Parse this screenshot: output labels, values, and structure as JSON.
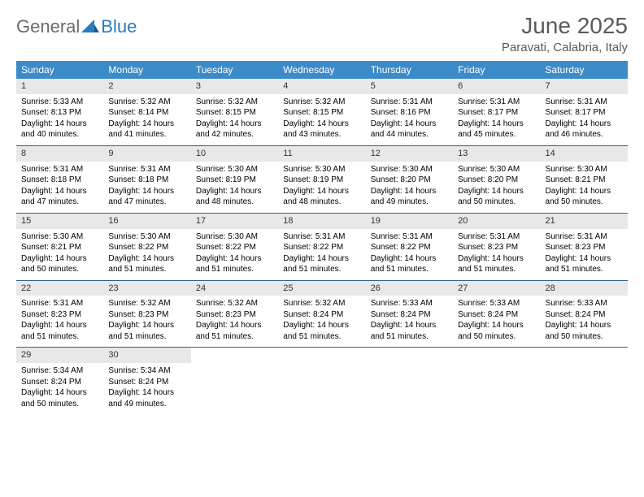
{
  "logo": {
    "text1": "General",
    "text2": "Blue"
  },
  "title": "June 2025",
  "location": "Paravati, Calabria, Italy",
  "colors": {
    "header_bg": "#3b8bc9",
    "header_text": "#ffffff",
    "daynum_bg": "#e8e8e8",
    "border": "#2f5f8a",
    "title_color": "#5a5a5a",
    "logo_gray": "#6a6a6a",
    "logo_blue": "#2a7bbf"
  },
  "weekdays": [
    "Sunday",
    "Monday",
    "Tuesday",
    "Wednesday",
    "Thursday",
    "Friday",
    "Saturday"
  ],
  "rows": [
    [
      {
        "n": "1",
        "sr": "Sunrise: 5:33 AM",
        "ss": "Sunset: 8:13 PM",
        "d1": "Daylight: 14 hours",
        "d2": "and 40 minutes."
      },
      {
        "n": "2",
        "sr": "Sunrise: 5:32 AM",
        "ss": "Sunset: 8:14 PM",
        "d1": "Daylight: 14 hours",
        "d2": "and 41 minutes."
      },
      {
        "n": "3",
        "sr": "Sunrise: 5:32 AM",
        "ss": "Sunset: 8:15 PM",
        "d1": "Daylight: 14 hours",
        "d2": "and 42 minutes."
      },
      {
        "n": "4",
        "sr": "Sunrise: 5:32 AM",
        "ss": "Sunset: 8:15 PM",
        "d1": "Daylight: 14 hours",
        "d2": "and 43 minutes."
      },
      {
        "n": "5",
        "sr": "Sunrise: 5:31 AM",
        "ss": "Sunset: 8:16 PM",
        "d1": "Daylight: 14 hours",
        "d2": "and 44 minutes."
      },
      {
        "n": "6",
        "sr": "Sunrise: 5:31 AM",
        "ss": "Sunset: 8:17 PM",
        "d1": "Daylight: 14 hours",
        "d2": "and 45 minutes."
      },
      {
        "n": "7",
        "sr": "Sunrise: 5:31 AM",
        "ss": "Sunset: 8:17 PM",
        "d1": "Daylight: 14 hours",
        "d2": "and 46 minutes."
      }
    ],
    [
      {
        "n": "8",
        "sr": "Sunrise: 5:31 AM",
        "ss": "Sunset: 8:18 PM",
        "d1": "Daylight: 14 hours",
        "d2": "and 47 minutes."
      },
      {
        "n": "9",
        "sr": "Sunrise: 5:31 AM",
        "ss": "Sunset: 8:18 PM",
        "d1": "Daylight: 14 hours",
        "d2": "and 47 minutes."
      },
      {
        "n": "10",
        "sr": "Sunrise: 5:30 AM",
        "ss": "Sunset: 8:19 PM",
        "d1": "Daylight: 14 hours",
        "d2": "and 48 minutes."
      },
      {
        "n": "11",
        "sr": "Sunrise: 5:30 AM",
        "ss": "Sunset: 8:19 PM",
        "d1": "Daylight: 14 hours",
        "d2": "and 48 minutes."
      },
      {
        "n": "12",
        "sr": "Sunrise: 5:30 AM",
        "ss": "Sunset: 8:20 PM",
        "d1": "Daylight: 14 hours",
        "d2": "and 49 minutes."
      },
      {
        "n": "13",
        "sr": "Sunrise: 5:30 AM",
        "ss": "Sunset: 8:20 PM",
        "d1": "Daylight: 14 hours",
        "d2": "and 50 minutes."
      },
      {
        "n": "14",
        "sr": "Sunrise: 5:30 AM",
        "ss": "Sunset: 8:21 PM",
        "d1": "Daylight: 14 hours",
        "d2": "and 50 minutes."
      }
    ],
    [
      {
        "n": "15",
        "sr": "Sunrise: 5:30 AM",
        "ss": "Sunset: 8:21 PM",
        "d1": "Daylight: 14 hours",
        "d2": "and 50 minutes."
      },
      {
        "n": "16",
        "sr": "Sunrise: 5:30 AM",
        "ss": "Sunset: 8:22 PM",
        "d1": "Daylight: 14 hours",
        "d2": "and 51 minutes."
      },
      {
        "n": "17",
        "sr": "Sunrise: 5:30 AM",
        "ss": "Sunset: 8:22 PM",
        "d1": "Daylight: 14 hours",
        "d2": "and 51 minutes."
      },
      {
        "n": "18",
        "sr": "Sunrise: 5:31 AM",
        "ss": "Sunset: 8:22 PM",
        "d1": "Daylight: 14 hours",
        "d2": "and 51 minutes."
      },
      {
        "n": "19",
        "sr": "Sunrise: 5:31 AM",
        "ss": "Sunset: 8:22 PM",
        "d1": "Daylight: 14 hours",
        "d2": "and 51 minutes."
      },
      {
        "n": "20",
        "sr": "Sunrise: 5:31 AM",
        "ss": "Sunset: 8:23 PM",
        "d1": "Daylight: 14 hours",
        "d2": "and 51 minutes."
      },
      {
        "n": "21",
        "sr": "Sunrise: 5:31 AM",
        "ss": "Sunset: 8:23 PM",
        "d1": "Daylight: 14 hours",
        "d2": "and 51 minutes."
      }
    ],
    [
      {
        "n": "22",
        "sr": "Sunrise: 5:31 AM",
        "ss": "Sunset: 8:23 PM",
        "d1": "Daylight: 14 hours",
        "d2": "and 51 minutes."
      },
      {
        "n": "23",
        "sr": "Sunrise: 5:32 AM",
        "ss": "Sunset: 8:23 PM",
        "d1": "Daylight: 14 hours",
        "d2": "and 51 minutes."
      },
      {
        "n": "24",
        "sr": "Sunrise: 5:32 AM",
        "ss": "Sunset: 8:23 PM",
        "d1": "Daylight: 14 hours",
        "d2": "and 51 minutes."
      },
      {
        "n": "25",
        "sr": "Sunrise: 5:32 AM",
        "ss": "Sunset: 8:24 PM",
        "d1": "Daylight: 14 hours",
        "d2": "and 51 minutes."
      },
      {
        "n": "26",
        "sr": "Sunrise: 5:33 AM",
        "ss": "Sunset: 8:24 PM",
        "d1": "Daylight: 14 hours",
        "d2": "and 51 minutes."
      },
      {
        "n": "27",
        "sr": "Sunrise: 5:33 AM",
        "ss": "Sunset: 8:24 PM",
        "d1": "Daylight: 14 hours",
        "d2": "and 50 minutes."
      },
      {
        "n": "28",
        "sr": "Sunrise: 5:33 AM",
        "ss": "Sunset: 8:24 PM",
        "d1": "Daylight: 14 hours",
        "d2": "and 50 minutes."
      }
    ],
    [
      {
        "n": "29",
        "sr": "Sunrise: 5:34 AM",
        "ss": "Sunset: 8:24 PM",
        "d1": "Daylight: 14 hours",
        "d2": "and 50 minutes."
      },
      {
        "n": "30",
        "sr": "Sunrise: 5:34 AM",
        "ss": "Sunset: 8:24 PM",
        "d1": "Daylight: 14 hours",
        "d2": "and 49 minutes."
      },
      {
        "empty": true
      },
      {
        "empty": true
      },
      {
        "empty": true
      },
      {
        "empty": true
      },
      {
        "empty": true
      }
    ]
  ]
}
